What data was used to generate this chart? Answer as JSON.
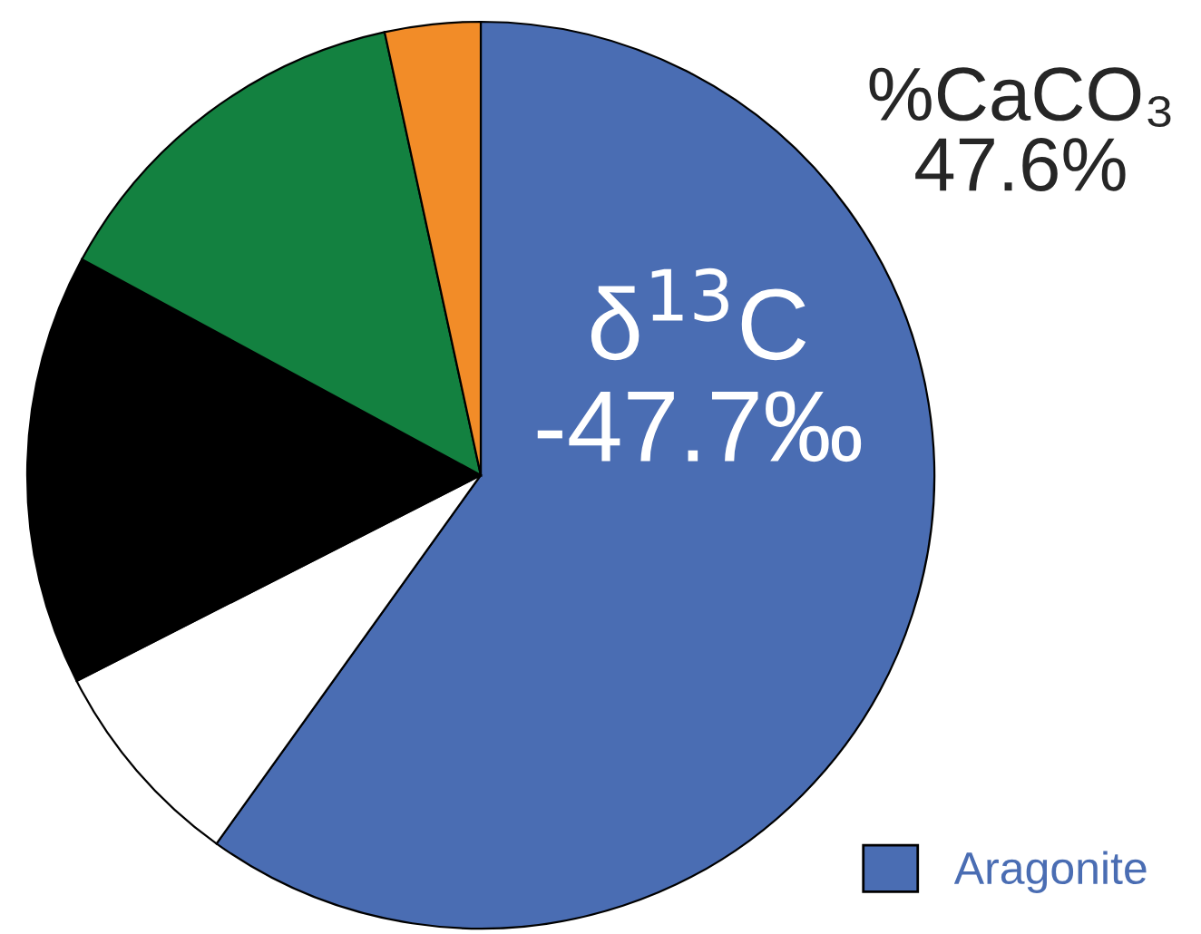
{
  "chart_data": {
    "type": "pie",
    "categories": [
      "Aragonite",
      null,
      null,
      null,
      null
    ],
    "values": [
      59.9,
      7.6,
      15.4,
      13.7,
      3.4
    ],
    "colors": [
      "#4a6db3",
      "#ffffff",
      "#000000",
      "#138140",
      "#f28c28"
    ],
    "legend": "bottom right",
    "annotations": [
      "%CaCO₃\n47.6%",
      "δ$^{13}$C\n-47.7‰"
    ]
  }
}
